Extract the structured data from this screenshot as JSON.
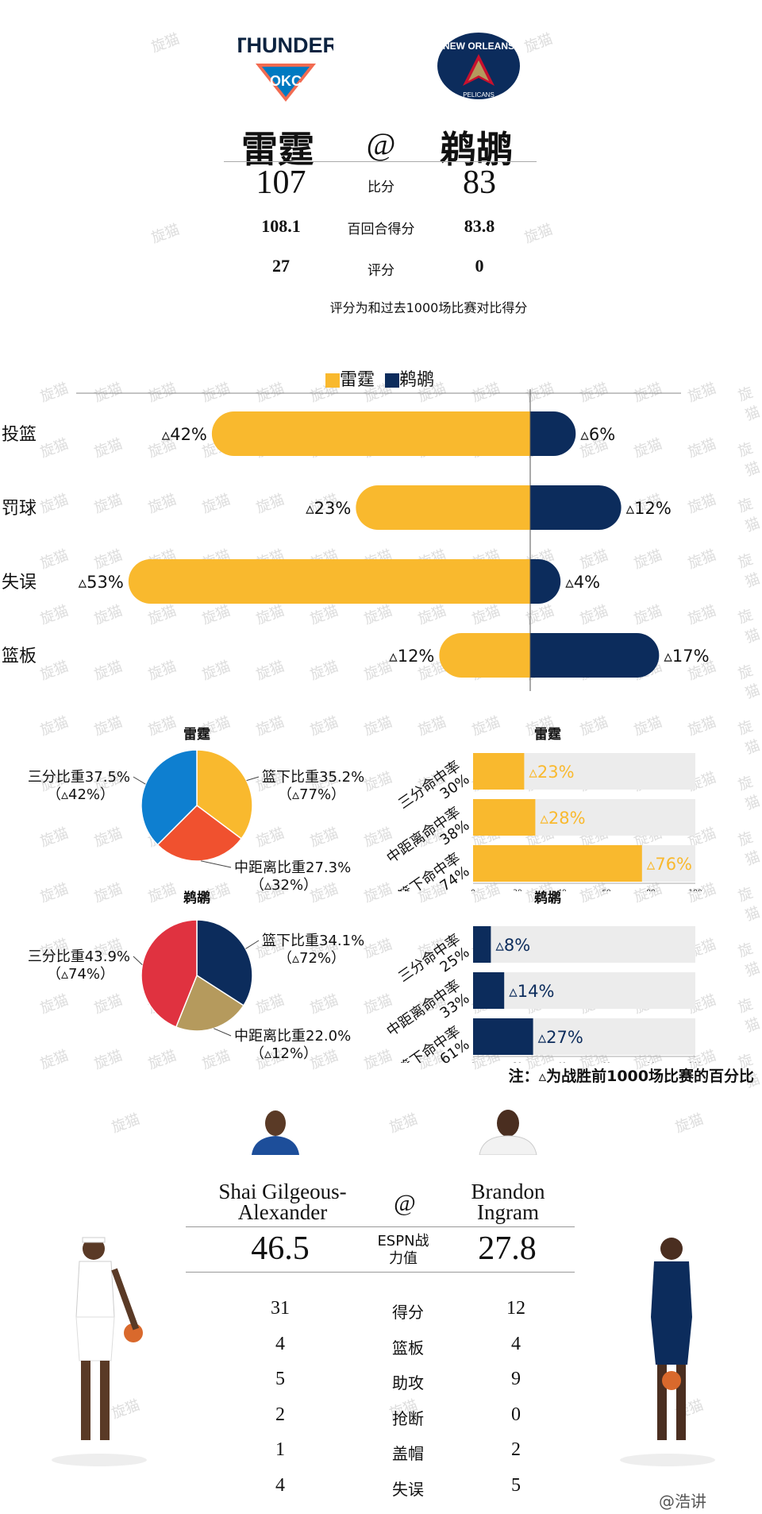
{
  "colors": {
    "okc": "#F9B92E",
    "nop": "#0C2C5C",
    "pie_okc_three": "#0E7FD0",
    "pie_okc_paint": "#F9B92E",
    "pie_okc_mid": "#F0512F",
    "pie_nop_three": "#E03240",
    "pie_nop_paint": "#0C2C5C",
    "pie_nop_mid": "#B59A5D"
  },
  "header": {
    "okc_logo_text": "THUNDER",
    "okc_logo_sub": "OKC",
    "nop_logo_text": "NEW ORLEANS",
    "nop_logo_sub": "PELICANS",
    "home_name": "雷霆",
    "at": "@",
    "away_name": "鹈鹕",
    "rows": [
      {
        "home": "107",
        "label": "比分",
        "away": "83"
      },
      {
        "home": "108.1",
        "label": "百回合得分",
        "away": "83.8"
      },
      {
        "home": "27",
        "label": "评分",
        "away": "0"
      }
    ],
    "note": "评分为和过去1000场比赛对比得分"
  },
  "watermark": "旋猫",
  "chart_data": [
    {
      "type": "bar",
      "orientation": "diverging-horizontal",
      "legend": [
        "雷霆",
        "鹈鹕"
      ],
      "legend_position": "top",
      "categories": [
        "投篮",
        "罚球",
        "失误",
        "篮板"
      ],
      "series": [
        {
          "name": "雷霆",
          "values": [
            42,
            23,
            53,
            12
          ],
          "labels": [
            "▵42%",
            "▵23%",
            "▵53%",
            "▵12%"
          ]
        },
        {
          "name": "鹈鹕",
          "values": [
            6,
            12,
            4,
            17
          ],
          "labels": [
            "▵6%",
            "▵12%",
            "▵4%",
            "▵17%"
          ]
        }
      ]
    },
    {
      "type": "pie",
      "title": "雷霆",
      "slices": [
        {
          "label": "篮下比重35.2%",
          "sub": "（▵77%）",
          "value": 35.2
        },
        {
          "label": "中距离比重27.3%",
          "sub": "（▵32%）",
          "value": 27.3
        },
        {
          "label": "三分比重37.5%",
          "sub": "（▵42%）",
          "value": 37.5
        }
      ]
    },
    {
      "type": "bar",
      "title": "雷霆",
      "categories": [
        "三分命中率30%",
        "中距离命中率38%",
        "篮下命中率74%"
      ],
      "values": [
        23,
        28,
        76
      ],
      "labels": [
        "▵23%",
        "▵28%",
        "▵76%"
      ],
      "xlim": [
        0,
        100
      ],
      "xticks": [
        "0",
        "20",
        "40",
        "60",
        "80",
        "100"
      ]
    },
    {
      "type": "pie",
      "title": "鹈鹕",
      "slices": [
        {
          "label": "篮下比重34.1%",
          "sub": "（▵72%）",
          "value": 34.1
        },
        {
          "label": "中距离比重22.0%",
          "sub": "（▵12%）",
          "value": 22.0
        },
        {
          "label": "三分比重43.9%",
          "sub": "（▵74%）",
          "value": 43.9
        }
      ]
    },
    {
      "type": "bar",
      "title": "鹈鹕",
      "categories": [
        "三分命中率25%",
        "中距离命中率33%",
        "篮下命中率61%"
      ],
      "values": [
        8,
        14,
        27
      ],
      "labels": [
        "▵8%",
        "▵14%",
        "▵27%"
      ],
      "xlim": [
        0,
        100
      ],
      "xticks": [
        "0",
        "20",
        "40",
        "60",
        "80",
        "100"
      ]
    }
  ],
  "chart_note": "注：▵为战胜前1000场比赛的百分比",
  "players": {
    "home_name_l1": "Shai Gilgeous-",
    "home_name_l2": "Alexander",
    "at": "@",
    "away_name_l1": "Brandon",
    "away_name_l2": "Ingram",
    "espn": {
      "home": "46.5",
      "label_l1": "ESPN战",
      "label_l2": "力值",
      "away": "27.8"
    },
    "rows": [
      {
        "home": "31",
        "label": "得分",
        "away": "12"
      },
      {
        "home": "4",
        "label": "篮板",
        "away": "4"
      },
      {
        "home": "5",
        "label": "助攻",
        "away": "9"
      },
      {
        "home": "2",
        "label": "抢断",
        "away": "0"
      },
      {
        "home": "1",
        "label": "盖帽",
        "away": "2"
      },
      {
        "home": "4",
        "label": "失误",
        "away": "5"
      }
    ]
  },
  "footer_credit": "@浩讲"
}
